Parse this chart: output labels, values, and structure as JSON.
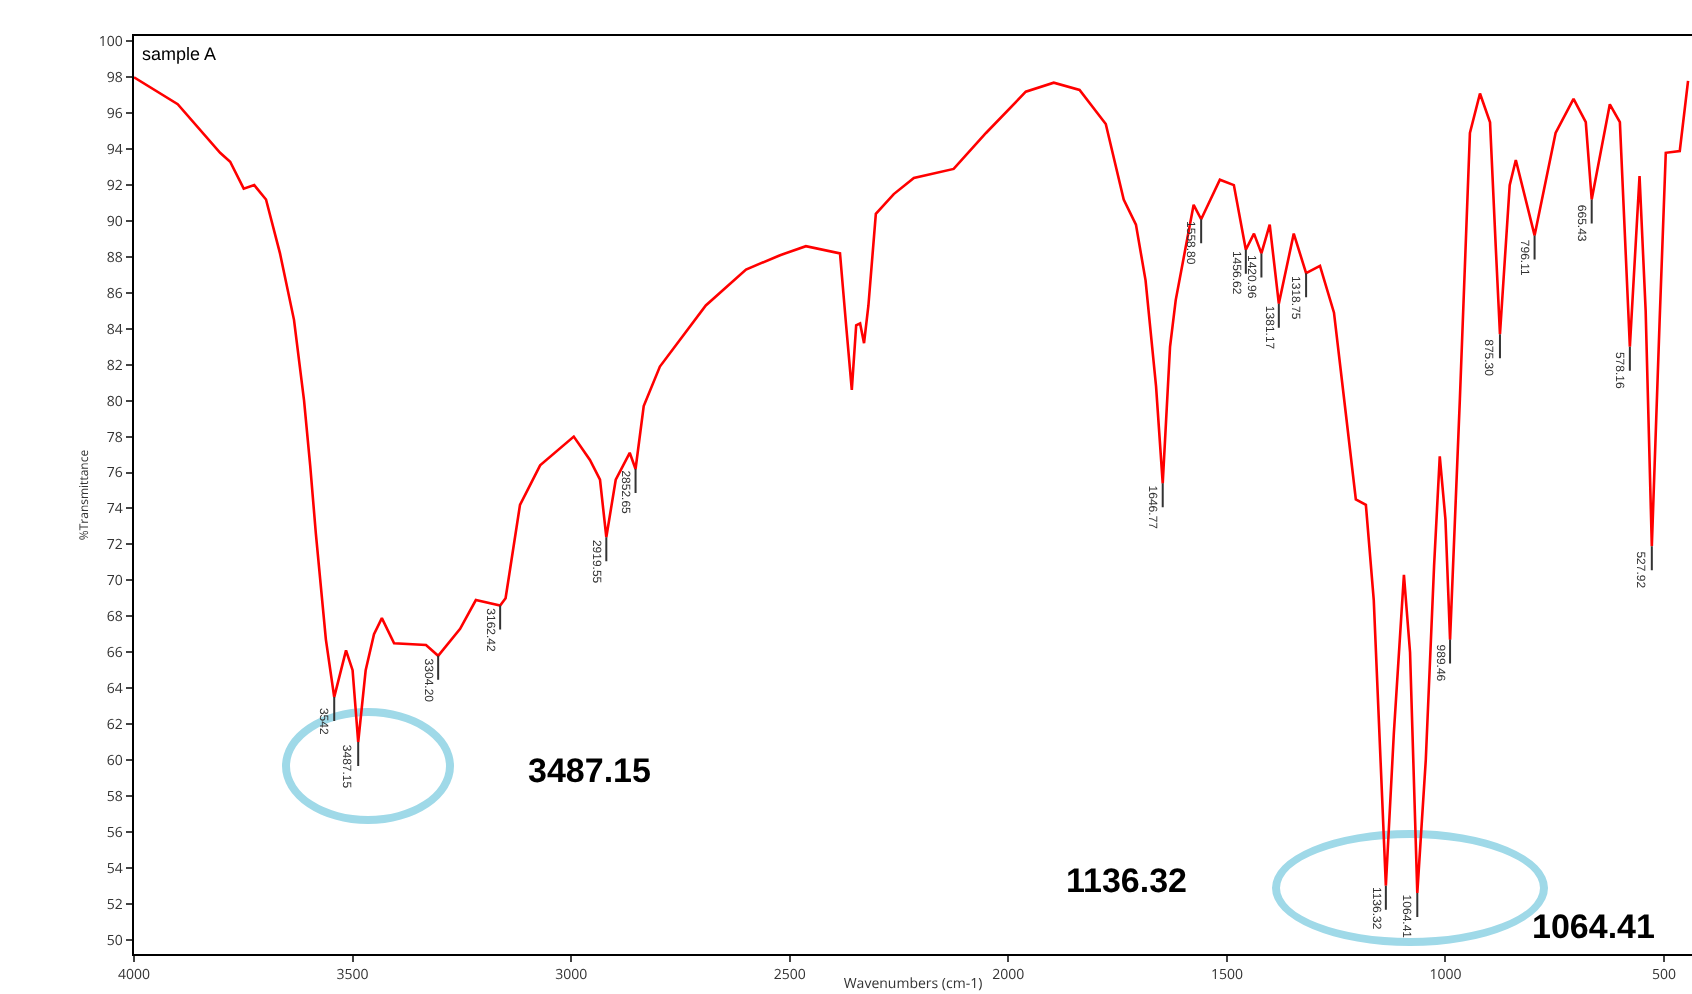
{
  "chart_data": {
    "type": "line",
    "xlabel": "Wavenumbers (cm-1)",
    "ylabel": "%Transmittance",
    "xlim": [
      4000,
      436
    ],
    "ylim": [
      49.2,
      100.3
    ],
    "xticks": [
      4000,
      3500,
      3000,
      2500,
      2000,
      1500,
      1000,
      500
    ],
    "yticks": [
      50,
      52,
      54,
      56,
      58,
      60,
      62,
      64,
      66,
      68,
      70,
      72,
      74,
      76,
      78,
      80,
      82,
      84,
      86,
      88,
      90,
      92,
      94,
      96,
      98,
      100
    ],
    "grid": false,
    "marker": "none",
    "line_style": "solid",
    "series": [
      {
        "color": "#ff0000",
        "x": [
          4000,
          3900,
          3803,
          3780,
          3749,
          3725,
          3698,
          3666,
          3634,
          3611,
          3597,
          3584,
          3561,
          3542,
          3515,
          3500,
          3487.15,
          3470,
          3451,
          3433,
          3405,
          3332,
          3304.2,
          3254,
          3218,
          3162.42,
          3150,
          3117,
          3071,
          2994,
          2957,
          2934,
          2919.55,
          2898,
          2866,
          2852.65,
          2834,
          2797,
          2692,
          2600,
          2522,
          2463,
          2385,
          2371,
          2358,
          2348,
          2339,
          2330,
          2320,
          2303,
          2262,
          2216,
          2125,
          2051,
          1960,
          1896,
          1837,
          1777,
          1736,
          1708,
          1686,
          1662,
          1646.77,
          1630,
          1617,
          1576,
          1558.8,
          1516,
          1484,
          1456.62,
          1438,
          1420.96,
          1402,
          1381.17,
          1347,
          1318.75,
          1287,
          1255,
          1228,
          1205,
          1182,
          1164,
          1136.32,
          1118,
          1095,
          1081,
          1064.41,
          1045,
          1026,
          1013,
          1000,
          989.46,
          967,
          944,
          921,
          898,
          885,
          875.3,
          853,
          839,
          796.11,
          748,
          707,
          679,
          665.43,
          624,
          601,
          578.16,
          556,
          542,
          527.92,
          510,
          496,
          464,
          445
        ],
        "values": [
          98,
          96.5,
          93.8,
          93.3,
          91.8,
          92,
          91.2,
          88.2,
          84.5,
          80,
          76.4,
          72.6,
          66.7,
          63.5,
          66.1,
          65,
          61,
          65,
          67,
          67.9,
          66.5,
          66.4,
          65.8,
          67.3,
          68.9,
          68.6,
          69,
          74.2,
          76.4,
          78,
          76.7,
          75.6,
          72.4,
          75.6,
          77.1,
          76.2,
          79.7,
          81.9,
          85.3,
          87.3,
          88.1,
          88.6,
          88.2,
          84.2,
          80.6,
          84.2,
          84.3,
          83.2,
          85.3,
          90.4,
          91.5,
          92.4,
          92.9,
          94.9,
          97.2,
          97.7,
          97.3,
          95.4,
          91.2,
          89.8,
          86.7,
          80.8,
          75.4,
          83,
          85.6,
          90.9,
          90.1,
          92.3,
          92,
          88.4,
          89.3,
          88.2,
          89.8,
          85.4,
          89.3,
          87.1,
          87.5,
          84.9,
          79.3,
          74.5,
          74.2,
          68.9,
          53,
          61.5,
          70.3,
          66,
          52.6,
          60,
          70.8,
          76.9,
          73.4,
          66.7,
          80.1,
          94.9,
          97.1,
          95.5,
          88.6,
          83.7,
          92,
          93.4,
          89.2,
          94.9,
          96.8,
          95.5,
          91.2,
          96.5,
          95.5,
          83,
          92.5,
          85,
          71.9,
          84.5,
          93.8,
          93.9,
          97.8
        ]
      }
    ],
    "annotations": [
      "sample A",
      "3487.15",
      "1136.32",
      "1064.41",
      {
        "text": "3542",
        "x": 3542,
        "y": 63.5
      },
      {
        "text": "3487.15",
        "x": 3487.15,
        "y": 61
      },
      {
        "text": "3304.20",
        "x": 3304.2,
        "y": 65.8
      },
      {
        "text": "3162.42",
        "x": 3162.42,
        "y": 68.6
      },
      {
        "text": "2919.55",
        "x": 2919.55,
        "y": 72.4
      },
      {
        "text": "2852.65",
        "x": 2852.65,
        "y": 76.2
      },
      {
        "text": "1646.77",
        "x": 1646.77,
        "y": 75.4
      },
      {
        "text": "1558.80",
        "x": 1558.8,
        "y": 90.1
      },
      {
        "text": "1456.62",
        "x": 1456.62,
        "y": 88.4
      },
      {
        "text": "1420.96",
        "x": 1420.96,
        "y": 88.2
      },
      {
        "text": "1381.17",
        "x": 1381.17,
        "y": 85.4
      },
      {
        "text": "1318.75",
        "x": 1318.75,
        "y": 87.1
      },
      {
        "text": "1136.32",
        "x": 1136.32,
        "y": 53
      },
      {
        "text": "1064.41",
        "x": 1064.41,
        "y": 52.6
      },
      {
        "text": "989.46",
        "x": 989.46,
        "y": 66.7
      },
      {
        "text": "875.30",
        "x": 875.3,
        "y": 83.7
      },
      {
        "text": "796.11",
        "x": 796.11,
        "y": 89.2
      },
      {
        "text": "665.43",
        "x": 665.43,
        "y": 91.2
      },
      {
        "text": "578.16",
        "x": 578.16,
        "y": 83
      },
      {
        "text": "527.92",
        "x": 527.92,
        "y": 71.9
      }
    ]
  }
}
